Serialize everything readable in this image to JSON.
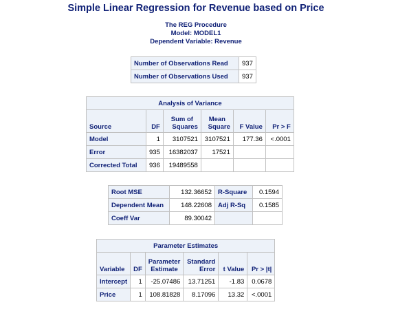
{
  "title": "Simple Linear Regression for Revenue based on Price",
  "subtitles": {
    "procedure": "The REG Procedure",
    "model": "Model: MODEL1",
    "dependent": "Dependent Variable: Revenue"
  },
  "observations": {
    "rows": [
      {
        "label": "Number of Observations Read",
        "value": "937"
      },
      {
        "label": "Number of Observations Used",
        "value": "937"
      }
    ]
  },
  "anova": {
    "caption": "Analysis of Variance",
    "headers": {
      "source": "Source",
      "df": "DF",
      "ss_line1": "Sum of",
      "ss_line2": "Squares",
      "ms_line1": "Mean",
      "ms_line2": "Square",
      "f": "F Value",
      "p": "Pr > F"
    },
    "rows": [
      {
        "source": "Model",
        "df": "1",
        "ss": "3107521",
        "ms": "3107521",
        "f": "177.36",
        "p": "<.0001"
      },
      {
        "source": "Error",
        "df": "935",
        "ss": "16382037",
        "ms": "17521",
        "f": "",
        "p": ""
      },
      {
        "source": "Corrected Total",
        "df": "936",
        "ss": "19489558",
        "ms": "",
        "f": "",
        "p": ""
      }
    ]
  },
  "fit": {
    "rows": [
      {
        "label1": "Root MSE",
        "value1": "132.36652",
        "label2": "R-Square",
        "value2": "0.1594"
      },
      {
        "label1": "Dependent Mean",
        "value1": "148.22608",
        "label2": "Adj R-Sq",
        "value2": "0.1585"
      },
      {
        "label1": "Coeff Var",
        "value1": "89.30042",
        "label2": "",
        "value2": ""
      }
    ]
  },
  "params": {
    "caption": "Parameter Estimates",
    "headers": {
      "variable": "Variable",
      "df": "DF",
      "est_line1": "Parameter",
      "est_line2": "Estimate",
      "se_line1": "Standard",
      "se_line2": "Error",
      "t": "t Value",
      "p": "Pr > |t|"
    },
    "rows": [
      {
        "variable": "Intercept",
        "df": "1",
        "est": "-25.07486",
        "se": "13.71251",
        "t": "-1.83",
        "p": "0.0678"
      },
      {
        "variable": "Price",
        "df": "1",
        "est": "108.81828",
        "se": "8.17096",
        "t": "13.32",
        "p": "<.0001"
      }
    ]
  }
}
